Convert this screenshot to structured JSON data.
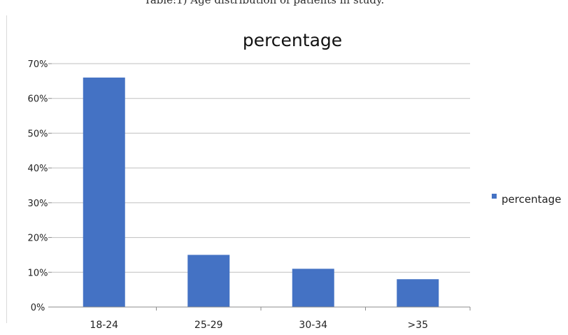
{
  "caption": "Table:1) Age distribution of patients in study.",
  "chart_data": {
    "type": "bar",
    "title": "percentage",
    "categories": [
      "18-24",
      "25-29",
      "30-34",
      ">35"
    ],
    "series": [
      {
        "name": "percentage",
        "values": [
          66,
          15,
          11,
          8
        ],
        "color": "#4472c4"
      }
    ],
    "ylim": [
      0,
      70
    ],
    "yticks": [
      0,
      10,
      20,
      30,
      40,
      50,
      60,
      70
    ],
    "ytick_labels": [
      "0%",
      "10%",
      "20%",
      "30%",
      "40%",
      "50%",
      "60%",
      "70%"
    ],
    "grid": true,
    "legend": "right"
  }
}
